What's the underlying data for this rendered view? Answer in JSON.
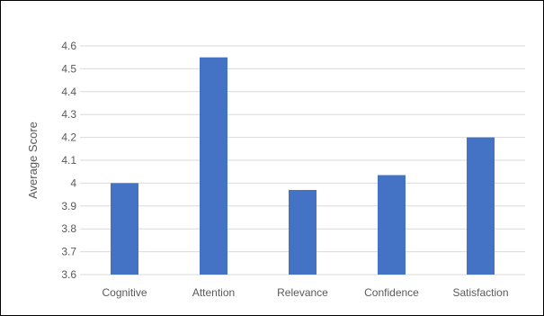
{
  "chart_data": {
    "type": "bar",
    "title": "",
    "xlabel": "",
    "ylabel": "Average Score",
    "categories": [
      "Cognitive",
      "Attention",
      "Relevance",
      "Confidence",
      "Satisfaction"
    ],
    "values": [
      4.0,
      4.55,
      3.97,
      4.035,
      4.2
    ],
    "ylim": [
      3.6,
      4.6
    ],
    "yticks": [
      "3.6",
      "3.7",
      "3.8",
      "3.9",
      "4",
      "4.1",
      "4.2",
      "4.3",
      "4.4",
      "4.5",
      "4.6"
    ],
    "grid": true,
    "legend": "none",
    "colors": {
      "bar": "#4472C4",
      "grid": "#d9d9d9",
      "text": "#595959"
    }
  }
}
